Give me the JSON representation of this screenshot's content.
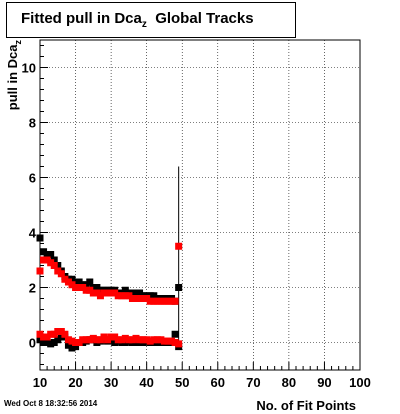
{
  "title": {
    "text": "Fitted pull in Dca",
    "subscript": "z",
    "suffix": "Global Tracks"
  },
  "timestamp": "Wed Oct  8 18:32:56 2014",
  "chart_data": {
    "type": "scatter",
    "title": "Fitted pull in Dca_z  Global Tracks",
    "xlabel": "No. of Fit Points",
    "ylabel": "pull in Dca",
    "ylabel_subscript": "z",
    "xlim": [
      10,
      100
    ],
    "ylim": [
      -1,
      11
    ],
    "xticks": [
      10,
      20,
      30,
      40,
      50,
      60,
      70,
      80,
      90,
      100
    ],
    "yticks": [
      0,
      2,
      4,
      6,
      8,
      10
    ],
    "grid": true,
    "series": [
      {
        "name": "",
        "color": "#000000",
        "marker": "square",
        "x": [
          10,
          11,
          12,
          13,
          14,
          15,
          16,
          17,
          18,
          19,
          20,
          21,
          22,
          23,
          24,
          25,
          26,
          27,
          28,
          29,
          30,
          31,
          32,
          33,
          34,
          35,
          36,
          37,
          38,
          39,
          40,
          41,
          42,
          43,
          44,
          45,
          46,
          47,
          48,
          49
        ],
        "y": [
          3.8,
          3.3,
          3.2,
          3.2,
          3.0,
          2.8,
          2.6,
          2.4,
          2.3,
          2.3,
          2.2,
          2.2,
          2.1,
          2.1,
          2.2,
          2.0,
          2.0,
          1.9,
          1.9,
          1.9,
          1.9,
          1.9,
          1.8,
          1.8,
          1.9,
          1.8,
          1.8,
          1.8,
          1.8,
          1.7,
          1.7,
          1.7,
          1.7,
          1.6,
          1.6,
          1.6,
          1.6,
          1.6,
          1.5,
          2.0
        ]
      },
      {
        "name": "",
        "color": "#ff0000",
        "marker": "square",
        "x": [
          10,
          11,
          12,
          13,
          14,
          15,
          16,
          17,
          18,
          19,
          20,
          21,
          22,
          23,
          24,
          25,
          26,
          27,
          28,
          29,
          30,
          31,
          32,
          33,
          34,
          35,
          36,
          37,
          38,
          39,
          40,
          41,
          42,
          43,
          44,
          45,
          46,
          47,
          48,
          49
        ],
        "y": [
          2.6,
          3.0,
          3.0,
          2.9,
          2.8,
          2.6,
          2.5,
          2.3,
          2.2,
          2.1,
          2.0,
          2.0,
          2.0,
          1.9,
          1.9,
          1.8,
          1.8,
          1.7,
          1.8,
          1.8,
          1.8,
          1.8,
          1.7,
          1.7,
          1.7,
          1.7,
          1.6,
          1.6,
          1.6,
          1.6,
          1.6,
          1.5,
          1.5,
          1.5,
          1.5,
          1.5,
          1.5,
          1.5,
          1.5,
          3.5
        ]
      },
      {
        "name": "",
        "color": "#000000",
        "marker": "square",
        "x": [
          10,
          11,
          12,
          13,
          14,
          15,
          16,
          17,
          18,
          19,
          20,
          21,
          22,
          23,
          24,
          25,
          26,
          27,
          28,
          29,
          30,
          31,
          32,
          33,
          34,
          35,
          36,
          37,
          38,
          39,
          40,
          41,
          42,
          43,
          44,
          45,
          46,
          47,
          48,
          49
        ],
        "y": [
          0.1,
          0.0,
          0.0,
          -0.05,
          0.0,
          0.1,
          0.2,
          0.2,
          -0.1,
          -0.2,
          -0.15,
          0.0,
          0.0,
          0.05,
          0.1,
          0.1,
          0.0,
          0.05,
          0.1,
          0.05,
          0.1,
          0.0,
          0.05,
          0.0,
          0.0,
          0.05,
          0.0,
          0.0,
          0.0,
          0.0,
          0.05,
          0.0,
          0.0,
          0.0,
          0.0,
          0.0,
          0.0,
          0.0,
          0.3,
          -0.15
        ]
      },
      {
        "name": "",
        "color": "#ff0000",
        "marker": "square",
        "x": [
          10,
          11,
          12,
          13,
          14,
          15,
          16,
          17,
          18,
          19,
          20,
          21,
          22,
          23,
          24,
          25,
          26,
          27,
          28,
          29,
          30,
          31,
          32,
          33,
          34,
          35,
          36,
          37,
          38,
          39,
          40,
          41,
          42,
          43,
          44,
          45,
          46,
          47,
          48,
          49
        ],
        "y": [
          0.3,
          0.2,
          0.2,
          0.3,
          0.3,
          0.4,
          0.4,
          0.3,
          0.1,
          0.05,
          0.0,
          0.0,
          0.1,
          0.1,
          0.1,
          0.15,
          0.1,
          0.1,
          0.2,
          0.1,
          0.2,
          0.2,
          0.1,
          0.1,
          0.15,
          0.1,
          0.1,
          0.15,
          0.1,
          0.1,
          0.1,
          0.05,
          0.1,
          0.1,
          0.1,
          0.05,
          0.05,
          0.05,
          0.0,
          -0.05
        ]
      }
    ],
    "error_bar": {
      "x": 49,
      "ylow": -0.2,
      "yhigh": 6.4
    }
  }
}
